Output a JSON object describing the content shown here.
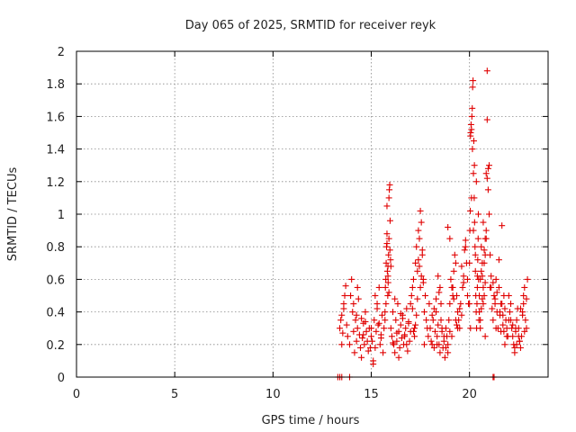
{
  "chart_data": {
    "type": "scatter",
    "title": "Day 065 of 2025, SRMTID for receiver reyk",
    "xlabel": "GPS time / hours",
    "ylabel": "SRMTID / TECUs",
    "xlim": [
      0,
      24
    ],
    "ylim": [
      0,
      2
    ],
    "xticks": [
      0,
      5,
      10,
      15,
      20
    ],
    "xtick_labels": [
      "0",
      "5",
      "10",
      "15",
      "20"
    ],
    "yticks": [
      0,
      0.2,
      0.4,
      0.6,
      0.8,
      1,
      1.2,
      1.4,
      1.6,
      1.8,
      2
    ],
    "ytick_labels": [
      "0",
      "0.2",
      "0.4",
      "0.6",
      "0.8",
      "1",
      "1.2",
      "1.4",
      "1.6",
      "1.8",
      "2"
    ],
    "grid": true,
    "marker": "+",
    "series": [
      {
        "name": "reyk",
        "color": "#e00000",
        "x": [
          13.3,
          13.4,
          13.5,
          13.9,
          21.2,
          21.25,
          13.4,
          13.45,
          13.5,
          13.55,
          13.6,
          13.65,
          13.7,
          13.75,
          13.5,
          13.6,
          13.8,
          13.9,
          14.0,
          14.05,
          14.1,
          14.15,
          14.2,
          14.25,
          14.3,
          14.35,
          14.4,
          14.45,
          14.5,
          14.55,
          14.6,
          14.65,
          14.7,
          14.75,
          14.8,
          14.9,
          14.95,
          15.0,
          14.1,
          14.3,
          14.5,
          14.7,
          13.95,
          14.25,
          14.6,
          14.85,
          15.0,
          15.05,
          15.1,
          15.15,
          15.2,
          15.25,
          15.3,
          15.35,
          15.4,
          15.45,
          15.5,
          15.55,
          15.6,
          15.65,
          15.1,
          15.3,
          15.5,
          15.2,
          15.4,
          15.7,
          15.72,
          15.74,
          15.76,
          15.78,
          15.8,
          15.82,
          15.84,
          15.86,
          15.88,
          15.9,
          15.92,
          15.94,
          15.96,
          15.98,
          16.0,
          15.75,
          15.85,
          15.95,
          15.8,
          15.9,
          15.7,
          15.8,
          15.9,
          15.85,
          16.0,
          16.05,
          16.1,
          16.15,
          16.2,
          16.25,
          16.3,
          16.35,
          16.4,
          16.45,
          16.5,
          16.55,
          16.6,
          16.65,
          16.7,
          16.75,
          16.8,
          16.85,
          16.9,
          16.95,
          17.0,
          16.2,
          16.4,
          16.6,
          16.8,
          16.3,
          16.5,
          16.7,
          16.9,
          16.1,
          17.0,
          17.05,
          17.1,
          17.15,
          17.2,
          17.25,
          17.3,
          17.35,
          17.4,
          17.45,
          17.5,
          17.55,
          17.6,
          17.65,
          17.7,
          17.75,
          17.8,
          17.85,
          17.9,
          17.95,
          17.5,
          17.55,
          17.45,
          17.6,
          17.4,
          17.3,
          17.35,
          17.65,
          17.2,
          17.25,
          17.7,
          17.1,
          17.15,
          18.0,
          18.05,
          18.1,
          18.15,
          18.2,
          18.25,
          18.3,
          18.35,
          18.4,
          18.45,
          18.5,
          18.55,
          18.6,
          18.65,
          18.7,
          18.75,
          18.8,
          18.85,
          18.9,
          18.95,
          19.0,
          18.1,
          18.3,
          18.5,
          18.7,
          18.9,
          18.2,
          18.4,
          18.6,
          18.8,
          18.35,
          18.55,
          18.45,
          18.9,
          19.0,
          19.05,
          19.1,
          19.15,
          19.2,
          19.25,
          19.3,
          19.35,
          19.4,
          19.45,
          19.5,
          19.55,
          19.6,
          19.65,
          19.7,
          19.75,
          19.8,
          19.85,
          19.9,
          19.95,
          19.1,
          19.3,
          19.5,
          19.7,
          19.9,
          19.0,
          19.2,
          19.4,
          19.6,
          19.8,
          19.15,
          19.35,
          20.0,
          20.02,
          20.04,
          20.06,
          20.08,
          20.1,
          20.12,
          20.14,
          20.16,
          20.18,
          20.2,
          20.22,
          20.24,
          20.26,
          20.28,
          20.3,
          20.32,
          20.34,
          20.36,
          20.38,
          20.4,
          20.42,
          20.44,
          20.46,
          20.48,
          20.5,
          20.05,
          20.15,
          20.25,
          20.35,
          20.45,
          20.1,
          20.2,
          20.3,
          20.4,
          20.0,
          20.05,
          20.5,
          20.55,
          20.6,
          20.65,
          20.7,
          20.75,
          20.8,
          20.85,
          20.9,
          20.95,
          21.0,
          20.6,
          20.7,
          20.8,
          20.9,
          20.55,
          20.65,
          20.75,
          20.85,
          20.95,
          20.6,
          20.7,
          20.8,
          20.9,
          20.65,
          20.75,
          20.85,
          21.05,
          20.55,
          20.8,
          21.0,
          21.05,
          21.1,
          21.15,
          21.2,
          21.25,
          21.3,
          21.35,
          21.4,
          21.45,
          21.5,
          21.55,
          21.6,
          21.65,
          21.7,
          21.75,
          21.8,
          21.85,
          21.9,
          21.95,
          22.0,
          21.1,
          21.3,
          21.5,
          21.7,
          21.9,
          21.2,
          21.4,
          21.6,
          21.8,
          21.65,
          21.35,
          21.55,
          21.75,
          22.0,
          22.05,
          22.1,
          22.15,
          22.2,
          22.25,
          22.3,
          22.35,
          22.4,
          22.45,
          22.5,
          22.55,
          22.6,
          22.65,
          22.7,
          22.75,
          22.8,
          22.85,
          22.9,
          22.95,
          22.1,
          22.3,
          22.5,
          22.7,
          22.9,
          22.2,
          22.4,
          22.6,
          22.8,
          22.35,
          22.55,
          22.75
        ],
        "y": [
          0,
          0,
          0,
          0,
          0,
          0,
          0.3,
          0.35,
          0.38,
          0.27,
          0.45,
          0.5,
          0.56,
          0.32,
          0.2,
          0.42,
          0.25,
          0.2,
          0.6,
          0.4,
          0.28,
          0.15,
          0.35,
          0.22,
          0.3,
          0.48,
          0.26,
          0.18,
          0.36,
          0.24,
          0.33,
          0.2,
          0.4,
          0.28,
          0.22,
          0.3,
          0.18,
          0.25,
          0.45,
          0.55,
          0.12,
          0.34,
          0.5,
          0.38,
          0.26,
          0.16,
          0.3,
          0.22,
          0.1,
          0.35,
          0.18,
          0.28,
          0.45,
          0.32,
          0.55,
          0.2,
          0.26,
          0.38,
          0.15,
          0.3,
          0.08,
          0.42,
          0.24,
          0.5,
          0.33,
          0.35,
          0.55,
          0.6,
          0.7,
          0.8,
          0.82,
          0.65,
          0.5,
          0.58,
          0.75,
          1.1,
          1.15,
          1.18,
          0.96,
          0.72,
          0.68,
          0.45,
          0.62,
          0.78,
          0.88,
          0.52,
          0.4,
          1.05,
          0.85,
          0.68,
          0.3,
          0.25,
          0.4,
          0.2,
          0.15,
          0.35,
          0.22,
          0.45,
          0.28,
          0.18,
          0.32,
          0.24,
          0.38,
          0.2,
          0.26,
          0.3,
          0.42,
          0.16,
          0.34,
          0.22,
          0.28,
          0.48,
          0.12,
          0.36,
          0.2,
          0.27,
          0.39,
          0.25,
          0.33,
          0.21,
          0.45,
          0.5,
          0.55,
          0.6,
          0.3,
          0.7,
          0.8,
          0.65,
          0.9,
          0.85,
          1.02,
          0.95,
          0.75,
          0.6,
          0.4,
          0.5,
          0.35,
          0.3,
          0.25,
          0.45,
          0.55,
          0.62,
          0.68,
          0.78,
          0.72,
          0.38,
          0.48,
          0.58,
          0.25,
          0.32,
          0.2,
          0.42,
          0.28,
          0.3,
          0.22,
          0.2,
          0.35,
          0.18,
          0.28,
          0.4,
          0.25,
          0.32,
          0.2,
          0.15,
          0.45,
          0.28,
          0.18,
          0.22,
          0.12,
          0.3,
          0.25,
          0.2,
          0.35,
          0.28,
          0.38,
          0.48,
          0.55,
          0.25,
          0.15,
          0.42,
          0.62,
          0.3,
          0.18,
          0.2,
          0.35,
          0.52,
          0.92,
          0.45,
          0.6,
          0.55,
          0.5,
          0.65,
          0.75,
          0.7,
          0.5,
          0.4,
          0.35,
          0.3,
          0.45,
          0.38,
          0.55,
          0.62,
          0.78,
          0.84,
          0.7,
          0.5,
          0.45,
          0.25,
          0.35,
          0.42,
          0.58,
          0.6,
          0.85,
          0.48,
          0.3,
          0.68,
          0.8,
          0.55,
          0.32,
          0.7,
          0.9,
          1.02,
          1.5,
          1.55,
          1.52,
          1.6,
          1.65,
          1.78,
          1.82,
          1.25,
          1.45,
          1.1,
          0.95,
          0.8,
          0.65,
          0.5,
          0.4,
          0.3,
          0.45,
          0.55,
          0.72,
          0.85,
          0.6,
          0.35,
          0.5,
          1.48,
          1.4,
          1.3,
          1.2,
          1.0,
          1.1,
          0.9,
          0.75,
          0.62,
          0.45,
          0.3,
          0.4,
          0.6,
          0.8,
          0.7,
          0.55,
          0.5,
          0.85,
          0.9,
          1.88,
          1.28,
          1.3,
          0.42,
          0.95,
          0.75,
          1.58,
          0.35,
          0.62,
          0.78,
          1.25,
          1.15,
          0.65,
          0.45,
          0.58,
          1.22,
          0.48,
          0.7,
          0.85,
          0.55,
          0.3,
          0.25,
          1.0,
          0.75,
          0.55,
          0.42,
          0.35,
          0.5,
          0.45,
          0.6,
          0.4,
          0.3,
          0.55,
          0.38,
          0.28,
          0.45,
          0.32,
          0.5,
          0.42,
          0.35,
          0.3,
          0.25,
          0.35,
          0.62,
          0.48,
          0.72,
          0.38,
          0.25,
          0.58,
          0.52,
          0.45,
          0.2,
          0.93,
          0.3,
          0.4,
          0.28,
          0.5,
          0.4,
          0.35,
          0.3,
          0.25,
          0.2,
          0.18,
          0.28,
          0.35,
          0.42,
          0.3,
          0.22,
          0.18,
          0.25,
          0.4,
          0.45,
          0.55,
          0.35,
          0.3,
          0.6,
          0.45,
          0.15,
          0.25,
          0.38,
          0.48,
          0.32,
          0.2,
          0.42,
          0.28,
          0.3,
          0.22,
          0.5
        ]
      }
    ]
  }
}
